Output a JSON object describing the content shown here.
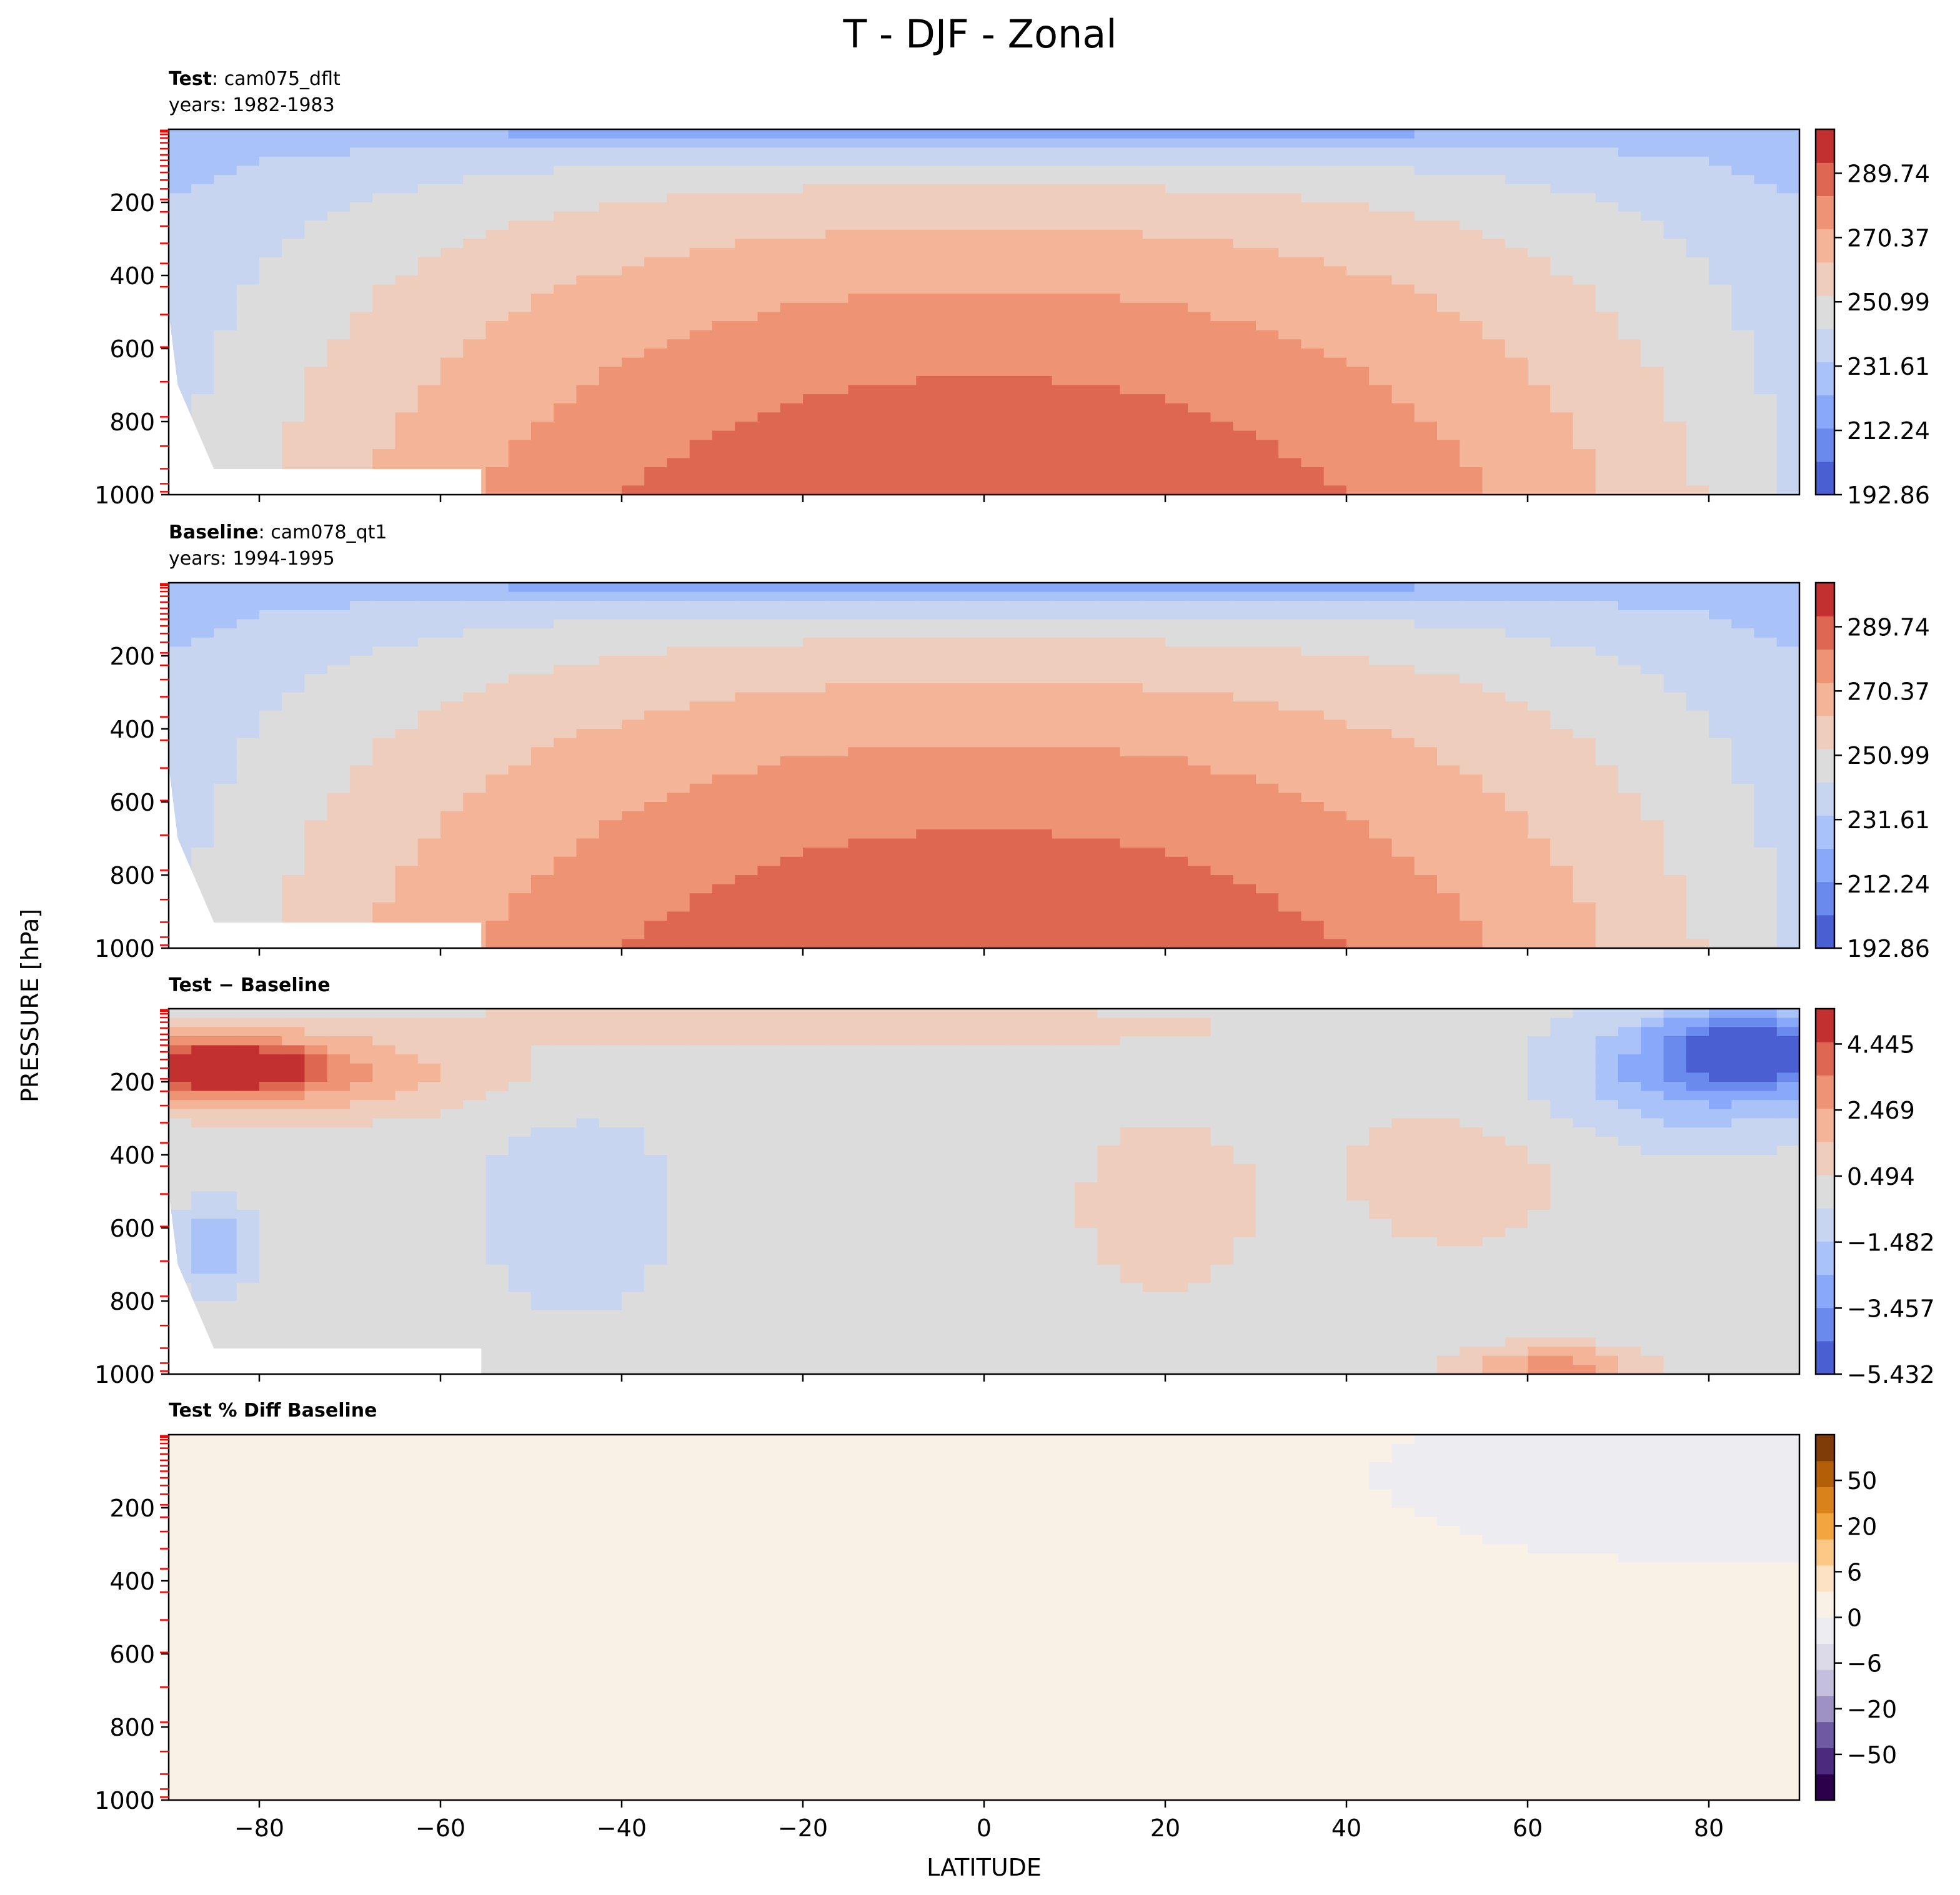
{
  "figure": {
    "title": "T - DJF - Zonal",
    "xlabel": "LATITUDE",
    "ylabel": "PRESSURE [hPa]"
  },
  "colors": {
    "coolwarm": [
      "#4a5fd1",
      "#6a8aee",
      "#88a9f9",
      "#a9c2f7",
      "#c7d5f0",
      "#dcdcdc",
      "#eecdbc",
      "#f3b497",
      "#ee9374",
      "#de6751",
      "#c33030"
    ],
    "pct": [
      "#2d004b",
      "#4c2a7e",
      "#6d5aa2",
      "#9d92c3",
      "#c3bfdc",
      "#dcdae9",
      "#ededf1",
      "#faf1e6",
      "#fde3c3",
      "#fbc985",
      "#f3a540",
      "#d9821b",
      "#b25f08",
      "#7f3b08"
    ],
    "tick_red": "#ff0000"
  },
  "chart_data": [
    {
      "type": "contourf",
      "title_bold": "Test",
      "title_sep": ": ",
      "title_rest": "cam075_dflt",
      "subtitle": "years: 1982-1983",
      "xlim": [
        -90,
        90
      ],
      "ylim": [
        1000,
        0
      ],
      "xticks": [
        -80,
        -60,
        -40,
        -20,
        0,
        20,
        40,
        60,
        80
      ],
      "yticks": [
        200,
        400,
        600,
        800,
        1000
      ],
      "colorbar": {
        "ticks": [
          "192.86",
          "212.24",
          "231.61",
          "250.99",
          "270.37",
          "289.74"
        ],
        "min": 192.86,
        "max": 303.0
      },
      "field": {
        "kind": "temperature",
        "surface": 293,
        "tropopause": 198,
        "polar_south": 233,
        "polar_north": 257,
        "bands": [
          {
            "lat": -90,
            "p": 0,
            "value": 228
          }
        ]
      }
    },
    {
      "type": "contourf",
      "title_bold": "Baseline",
      "title_sep": ": ",
      "title_rest": "cam078_qt1",
      "subtitle": "years: 1994-1995",
      "xlim": [
        -90,
        90
      ],
      "ylim": [
        1000,
        0
      ],
      "xticks": [
        -80,
        -60,
        -40,
        -20,
        0,
        20,
        40,
        60,
        80
      ],
      "yticks": [
        200,
        400,
        600,
        800,
        1000
      ],
      "colorbar": {
        "ticks": [
          "192.86",
          "212.24",
          "231.61",
          "250.99",
          "270.37",
          "289.74"
        ],
        "min": 192.86,
        "max": 303.0
      },
      "field": {
        "kind": "temperature",
        "surface": 293,
        "tropopause": 198,
        "polar_south": 233,
        "polar_north": 257
      }
    },
    {
      "type": "contourf",
      "title_bold": "Test − Baseline",
      "title_sep": "",
      "title_rest": "",
      "subtitle": "",
      "xlim": [
        -90,
        90
      ],
      "ylim": [
        1000,
        0
      ],
      "xticks": [
        -80,
        -60,
        -40,
        -20,
        0,
        20,
        40,
        60,
        80
      ],
      "yticks": [
        200,
        400,
        600,
        800,
        1000
      ],
      "colorbar": {
        "ticks": [
          "−5.432",
          "−3.457",
          "−1.482",
          "0.494",
          "2.469",
          "4.445"
        ],
        "min": -5.432,
        "max": 5.5
      },
      "field": {
        "kind": "difference",
        "blobs": [
          {
            "lat": -85,
            "p": 160,
            "value": 4.8,
            "wlat": 8,
            "wp": 55
          },
          {
            "lat": -75,
            "p": 180,
            "value": 2.4,
            "wlat": 16,
            "wp": 80
          },
          {
            "lat": -20,
            "p": 50,
            "value": 1.6,
            "wlat": 30,
            "wp": 35
          },
          {
            "lat": 20,
            "p": 540,
            "value": 1.0,
            "wlat": 8,
            "wp": 200
          },
          {
            "lat": 52,
            "p": 450,
            "value": 1.0,
            "wlat": 10,
            "wp": 170
          },
          {
            "lat": 85,
            "p": 110,
            "value": -4.5,
            "wlat": 8,
            "wp": 80
          },
          {
            "lat": 78,
            "p": 200,
            "value": -2.2,
            "wlat": 12,
            "wp": 120
          },
          {
            "lat": -45,
            "p": 550,
            "value": -0.9,
            "wlat": 9,
            "wp": 250
          },
          {
            "lat": -85,
            "p": 650,
            "value": -2.4,
            "wlat": 3,
            "wp": 80
          },
          {
            "lat": 63,
            "p": 980,
            "value": 3.0,
            "wlat": 7,
            "wp": 40
          }
        ]
      }
    },
    {
      "type": "contourf",
      "title_bold": "Test % Diff Baseline",
      "title_sep": "",
      "title_rest": "",
      "subtitle": "",
      "xlim": [
        -90,
        90
      ],
      "ylim": [
        1000,
        0
      ],
      "xticks": [
        -80,
        -60,
        -40,
        -20,
        0,
        20,
        40,
        60,
        80
      ],
      "yticks": [
        200,
        400,
        600,
        800,
        1000
      ],
      "colorbar": {
        "ticks": [
          "−50",
          "−20",
          "−6",
          "0",
          "6",
          "20",
          "50"
        ],
        "min": -70,
        "max": 70
      },
      "field": {
        "kind": "percent",
        "blobs": [
          {
            "lat": -85,
            "p": 170,
            "value": 2.0,
            "wlat": 6,
            "wp": 50
          },
          {
            "lat": 84,
            "p": 110,
            "value": -2.0,
            "wlat": 5,
            "wp": 30
          }
        ]
      }
    }
  ]
}
